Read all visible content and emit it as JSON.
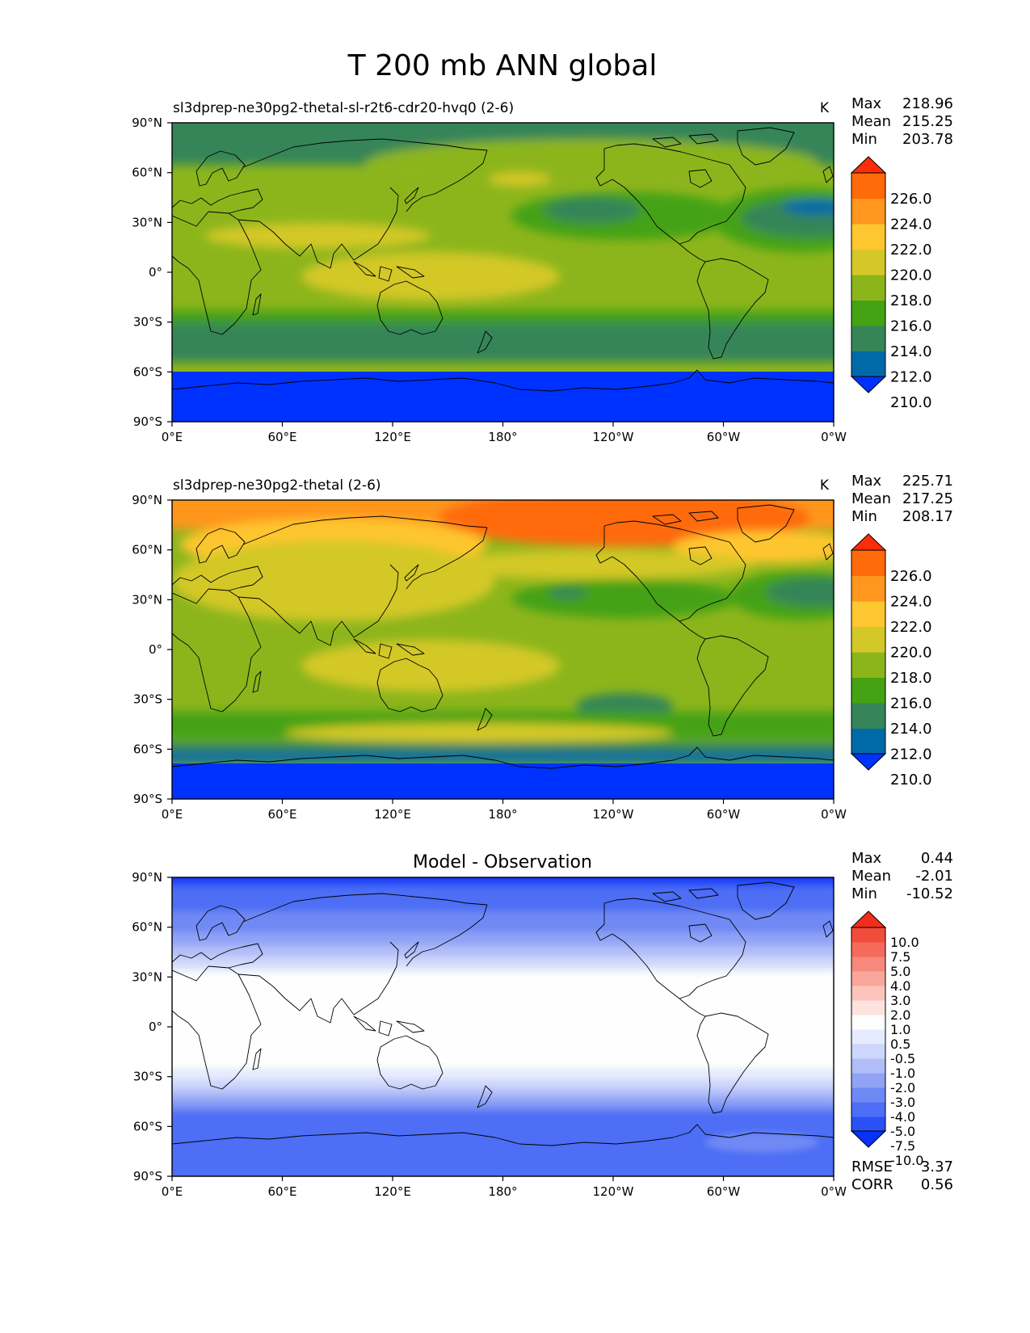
{
  "figure": {
    "title": "T 200 mb ANN global"
  },
  "axes": {
    "x_ticks": [
      "0°E",
      "60°E",
      "120°E",
      "180°",
      "120°W",
      "60°W",
      "0°W"
    ],
    "y_ticks": [
      "90°N",
      "60°N",
      "30°N",
      "0°",
      "30°S",
      "60°S",
      "90°S"
    ]
  },
  "colors": {
    "field_levels": [
      "#0032ff",
      "#006aa8",
      "#358559",
      "#45a212",
      "#8cb51c",
      "#d3c827",
      "#fec62f",
      "#ff961e",
      "#ff6a0a",
      "#ff2c0a"
    ],
    "diff_levels": [
      "#0832f7",
      "#2a51f6",
      "#4d6ef5",
      "#6f89f4",
      "#90a3f5",
      "#b0bdf8",
      "#cdd6fb",
      "#e6ebfd",
      "#fefefe",
      "#fde2dd",
      "#fbc4bc",
      "#f9a79c",
      "#f7897c",
      "#f46a5b",
      "#f24c3b",
      "#f02e1b"
    ],
    "coastline": "#000000"
  },
  "panels": [
    {
      "title": "sl3dprep-ne30pg2-thetal-sl-r2t6-cdr20-hvq0 (2-6)",
      "units": "K",
      "stats": [
        {
          "label": "Max",
          "value": "218.96"
        },
        {
          "label": "Mean",
          "value": "215.25"
        },
        {
          "label": "Min",
          "value": "203.78"
        }
      ],
      "colorbar_labels": [
        "226.0",
        "224.0",
        "222.0",
        "220.0",
        "218.0",
        "216.0",
        "214.0",
        "212.0",
        "210.0"
      ]
    },
    {
      "title": "sl3dprep-ne30pg2-thetal (2-6)",
      "units": "K",
      "stats": [
        {
          "label": "Max",
          "value": "225.71"
        },
        {
          "label": "Mean",
          "value": "217.25"
        },
        {
          "label": "Min",
          "value": "208.17"
        }
      ],
      "colorbar_labels": [
        "226.0",
        "224.0",
        "222.0",
        "220.0",
        "218.0",
        "216.0",
        "214.0",
        "212.0",
        "210.0"
      ]
    },
    {
      "title": "Model - Observation",
      "stats": [
        {
          "label": "Max",
          "value": "0.44"
        },
        {
          "label": "Mean",
          "value": "-2.01"
        },
        {
          "label": "Min",
          "value": "-10.52"
        }
      ],
      "colorbar_labels": [
        "10.0",
        "7.5",
        "5.0",
        "4.0",
        "3.0",
        "2.0",
        "1.0",
        "0.5",
        "-0.5",
        "-1.0",
        "-2.0",
        "-3.0",
        "-4.0",
        "-5.0",
        "-7.5",
        "-10.0"
      ],
      "metrics": [
        {
          "label": "RMSE",
          "value": "3.37"
        },
        {
          "label": "CORR",
          "value": "0.56"
        }
      ]
    }
  ]
}
